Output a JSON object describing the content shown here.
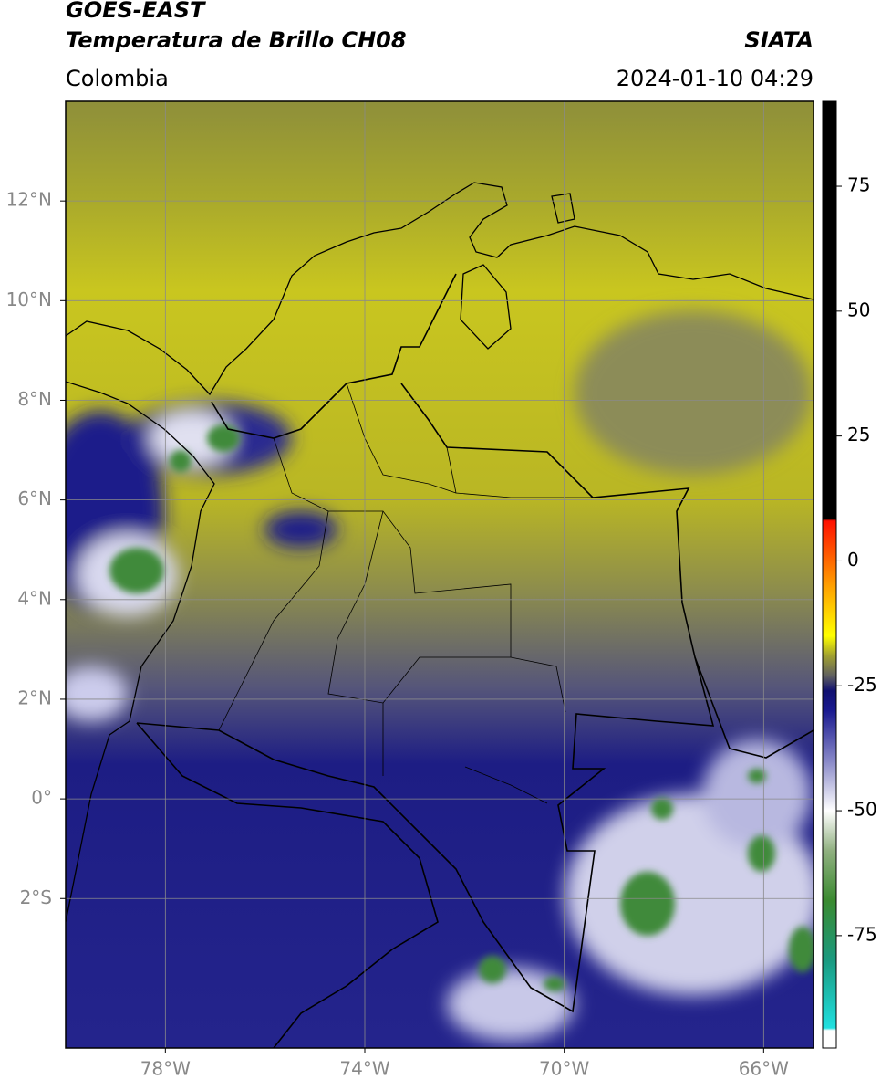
{
  "header": {
    "line1": "GOES-EAST",
    "title": "Temperatura de Brillo CH08",
    "source": "SIATA",
    "region": "Colombia",
    "datetime": "2024-01-10 04:29"
  },
  "map": {
    "type": "satellite-map",
    "xlim": [
      -80,
      -65
    ],
    "ylim": [
      -5,
      14
    ],
    "xticks": [
      {
        "value": -78,
        "label": "78°W"
      },
      {
        "value": -74,
        "label": "74°W"
      },
      {
        "value": -70,
        "label": "70°W"
      },
      {
        "value": -66,
        "label": "66°W"
      }
    ],
    "yticks": [
      {
        "value": 12,
        "label": "12°N"
      },
      {
        "value": 10,
        "label": "10°N"
      },
      {
        "value": 8,
        "label": "8°N"
      },
      {
        "value": 6,
        "label": "6°N"
      },
      {
        "value": 4,
        "label": "4°N"
      },
      {
        "value": 2,
        "label": "2°N"
      },
      {
        "value": 0,
        "label": "0°"
      },
      {
        "value": -2,
        "label": "2°S"
      }
    ],
    "grid": true,
    "grid_color": "#8a8a8a"
  },
  "colorbar": {
    "lim": [
      -97.5,
      92
    ],
    "ticks": [
      75,
      50,
      25,
      0,
      -25,
      -50,
      -75
    ],
    "stops": [
      {
        "value": -97.5,
        "color": "#ffffff"
      },
      {
        "value": -94,
        "color": "#ffffff"
      },
      {
        "value": -93.5,
        "color": "#20e0e0"
      },
      {
        "value": -80,
        "color": "#1a9a80"
      },
      {
        "value": -68,
        "color": "#3a8a30"
      },
      {
        "value": -58,
        "color": "#90b080"
      },
      {
        "value": -50,
        "color": "#ffffff"
      },
      {
        "value": -40,
        "color": "#8888c8"
      },
      {
        "value": -30,
        "color": "#1a1a90"
      },
      {
        "value": -26,
        "color": "#101070"
      },
      {
        "value": -23,
        "color": "#606060"
      },
      {
        "value": -19,
        "color": "#a0a030"
      },
      {
        "value": -15,
        "color": "#ffff00"
      },
      {
        "value": -5,
        "color": "#ffa000"
      },
      {
        "value": 8,
        "color": "#ff1000"
      },
      {
        "value": 8.5,
        "color": "#000000"
      },
      {
        "value": 92,
        "color": "#000000"
      }
    ]
  }
}
